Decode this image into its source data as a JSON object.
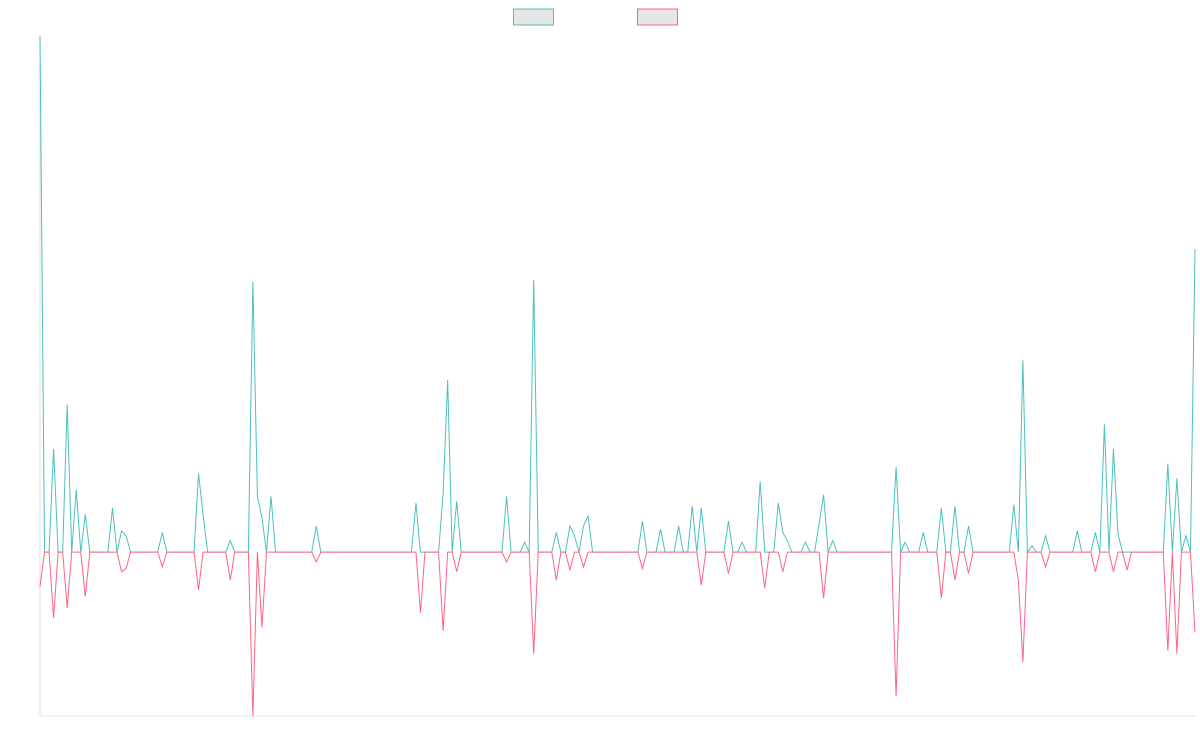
{
  "chart_data": {
    "type": "line",
    "ylim": [
      -100,
      315
    ],
    "legend": "top",
    "legend_fill": "#e6e6e6",
    "series": [
      {
        "color": "#4bc0c0",
        "values": [
          315,
          0,
          0,
          63,
          0,
          0,
          90,
          0,
          38,
          0,
          23,
          0,
          0,
          0,
          0,
          0,
          27,
          0,
          13,
          10,
          0,
          0,
          0,
          0,
          0,
          0,
          0,
          12,
          0,
          0,
          0,
          0,
          0,
          0,
          0,
          48,
          23,
          0,
          0,
          0,
          0,
          0,
          7,
          0,
          0,
          0,
          0,
          165,
          34,
          21,
          0,
          34,
          0,
          0,
          0,
          0,
          0,
          0,
          0,
          0,
          0,
          16,
          0,
          0,
          0,
          0,
          0,
          0,
          0,
          0,
          0,
          0,
          0,
          0,
          0,
          0,
          0,
          0,
          0,
          0,
          0,
          0,
          0,
          30,
          0,
          0,
          0,
          0,
          0,
          36,
          105,
          0,
          31,
          0,
          0,
          0,
          0,
          0,
          0,
          0,
          0,
          0,
          0,
          34,
          0,
          0,
          0,
          6,
          0,
          166,
          0,
          0,
          0,
          0,
          12,
          0,
          0,
          16,
          10,
          0,
          16,
          22,
          0,
          0,
          0,
          0,
          0,
          0,
          0,
          0,
          0,
          0,
          0,
          19,
          0,
          0,
          0,
          14,
          0,
          0,
          0,
          16,
          0,
          0,
          28,
          0,
          27,
          0,
          0,
          0,
          0,
          0,
          19,
          0,
          0,
          6,
          0,
          0,
          0,
          43,
          0,
          0,
          0,
          30,
          12,
          7,
          0,
          0,
          0,
          6,
          0,
          0,
          17,
          35,
          0,
          7,
          0,
          0,
          0,
          0,
          0,
          0,
          0,
          0,
          0,
          0,
          0,
          0,
          0,
          52,
          0,
          6,
          0,
          0,
          0,
          12,
          0,
          0,
          0,
          27,
          0,
          0,
          28,
          0,
          0,
          16,
          0,
          0,
          0,
          0,
          0,
          0,
          0,
          0,
          0,
          29,
          0,
          117,
          0,
          4,
          0,
          0,
          10,
          0,
          0,
          0,
          0,
          0,
          0,
          13,
          0,
          0,
          0,
          12,
          0,
          78,
          0,
          63,
          11,
          0,
          0,
          0,
          0,
          0,
          0,
          0,
          0,
          0,
          0,
          54,
          0,
          45,
          0,
          10,
          0,
          185
        ]
      },
      {
        "color": "#ff6384",
        "values": [
          -21,
          0,
          0,
          -40,
          0,
          0,
          -34,
          0,
          0,
          0,
          -27,
          0,
          0,
          0,
          0,
          0,
          0,
          0,
          -12,
          -10,
          0,
          0,
          0,
          0,
          0,
          0,
          0,
          -9,
          0,
          0,
          0,
          0,
          0,
          0,
          0,
          -23,
          0,
          0,
          0,
          0,
          0,
          0,
          -17,
          0,
          0,
          0,
          0,
          -100,
          0,
          -46,
          0,
          0,
          0,
          0,
          0,
          0,
          0,
          0,
          0,
          0,
          0,
          -6,
          0,
          0,
          0,
          0,
          0,
          0,
          0,
          0,
          0,
          0,
          0,
          0,
          0,
          0,
          0,
          0,
          0,
          0,
          0,
          0,
          0,
          0,
          -37,
          0,
          0,
          0,
          0,
          -48,
          0,
          0,
          -12,
          0,
          0,
          0,
          0,
          0,
          0,
          0,
          0,
          0,
          0,
          -6,
          0,
          0,
          0,
          0,
          0,
          -62,
          0,
          0,
          0,
          0,
          -17,
          0,
          0,
          -11,
          0,
          0,
          -9,
          0,
          0,
          0,
          0,
          0,
          0,
          0,
          0,
          0,
          0,
          0,
          0,
          -10,
          0,
          0,
          0,
          0,
          0,
          0,
          0,
          0,
          0,
          0,
          0,
          0,
          -20,
          0,
          0,
          0,
          0,
          0,
          -13,
          0,
          0,
          0,
          0,
          0,
          0,
          0,
          -22,
          0,
          0,
          0,
          -12,
          0,
          0,
          0,
          0,
          0,
          0,
          0,
          0,
          -28,
          0,
          0,
          0,
          0,
          0,
          0,
          0,
          0,
          0,
          0,
          0,
          0,
          0,
          0,
          0,
          -88,
          0,
          0,
          0,
          0,
          0,
          0,
          0,
          0,
          0,
          -28,
          0,
          0,
          -17,
          0,
          0,
          -13,
          0,
          0,
          0,
          0,
          0,
          0,
          0,
          0,
          0,
          0,
          -17,
          -67,
          0,
          0,
          0,
          0,
          -9,
          0,
          0,
          0,
          0,
          0,
          0,
          0,
          0,
          0,
          0,
          -12,
          0,
          0,
          0,
          -12,
          0,
          0,
          -11,
          0,
          0,
          0,
          0,
          0,
          0,
          0,
          0,
          -60,
          0,
          -62,
          0,
          0,
          0,
          -49
        ]
      }
    ]
  }
}
